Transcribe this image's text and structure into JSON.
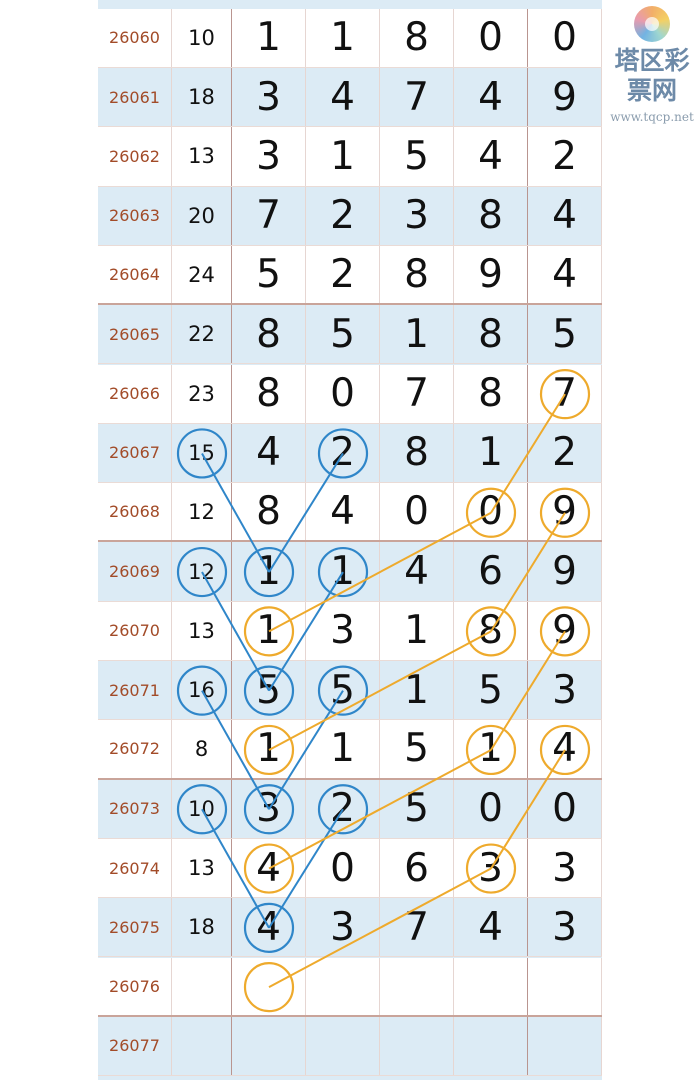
{
  "watermark": {
    "name": "塔区彩票网",
    "url": "www.tqcp.net"
  },
  "colors": {
    "blue_circle": "#2f86c9",
    "orange_circle": "#eeaa2c",
    "row_alt": "#dcebf5",
    "period_text": "#a24b28"
  },
  "rows": [
    {
      "period": "26060",
      "sum": "10",
      "digits": [
        "1",
        "1",
        "8",
        "0",
        "0"
      ]
    },
    {
      "period": "26061",
      "sum": "18",
      "digits": [
        "3",
        "4",
        "7",
        "4",
        "9"
      ]
    },
    {
      "period": "26062",
      "sum": "13",
      "digits": [
        "3",
        "1",
        "5",
        "4",
        "2"
      ]
    },
    {
      "period": "26063",
      "sum": "20",
      "digits": [
        "7",
        "2",
        "3",
        "8",
        "4"
      ]
    },
    {
      "period": "26064",
      "sum": "24",
      "digits": [
        "5",
        "2",
        "8",
        "9",
        "4"
      ]
    },
    {
      "period": "26065",
      "sum": "22",
      "digits": [
        "8",
        "5",
        "1",
        "8",
        "5"
      ]
    },
    {
      "period": "26066",
      "sum": "23",
      "digits": [
        "8",
        "0",
        "7",
        "8",
        "7"
      ]
    },
    {
      "period": "26067",
      "sum": "15",
      "digits": [
        "4",
        "2",
        "8",
        "1",
        "2"
      ]
    },
    {
      "period": "26068",
      "sum": "12",
      "digits": [
        "8",
        "4",
        "0",
        "0",
        "9"
      ]
    },
    {
      "period": "26069",
      "sum": "12",
      "digits": [
        "1",
        "1",
        "4",
        "6",
        "9"
      ]
    },
    {
      "period": "26070",
      "sum": "13",
      "digits": [
        "1",
        "3",
        "1",
        "8",
        "9"
      ]
    },
    {
      "period": "26071",
      "sum": "16",
      "digits": [
        "5",
        "5",
        "1",
        "5",
        "3"
      ]
    },
    {
      "period": "26072",
      "sum": "8",
      "digits": [
        "1",
        "1",
        "5",
        "1",
        "4"
      ]
    },
    {
      "period": "26073",
      "sum": "10",
      "digits": [
        "3",
        "2",
        "5",
        "0",
        "0"
      ]
    },
    {
      "period": "26074",
      "sum": "13",
      "digits": [
        "4",
        "0",
        "6",
        "3",
        "3"
      ]
    },
    {
      "period": "26075",
      "sum": "18",
      "digits": [
        "4",
        "3",
        "7",
        "4",
        "3"
      ]
    },
    {
      "period": "26076",
      "sum": "",
      "digits": [
        "",
        "",
        "",
        "",
        ""
      ]
    },
    {
      "period": "26077",
      "sum": "",
      "digits": [
        "",
        "",
        "",
        "",
        ""
      ]
    }
  ],
  "group_separators_after": [
    "26064",
    "26068",
    "26072",
    "26076"
  ],
  "annotations": {
    "blue_paths": [
      [
        [
          "26067",
          "sum"
        ],
        [
          "26069",
          "d1"
        ],
        [
          "26067",
          "d2"
        ]
      ],
      [
        [
          "26069",
          "sum"
        ],
        [
          "26071",
          "d1"
        ],
        [
          "26069",
          "d2"
        ]
      ],
      [
        [
          "26071",
          "sum"
        ],
        [
          "26073",
          "d1"
        ],
        [
          "26071",
          "d2"
        ]
      ],
      [
        [
          "26073",
          "sum"
        ],
        [
          "26075",
          "d1"
        ],
        [
          "26073",
          "d2"
        ]
      ]
    ],
    "orange_paths": [
      [
        [
          "26066",
          "d5"
        ],
        [
          "26068",
          "d4"
        ],
        [
          "26070",
          "d1"
        ]
      ],
      [
        [
          "26068",
          "d5"
        ],
        [
          "26070",
          "d4"
        ],
        [
          "26072",
          "d1"
        ]
      ],
      [
        [
          "26070",
          "d5"
        ],
        [
          "26072",
          "d4"
        ],
        [
          "26074",
          "d1"
        ]
      ],
      [
        [
          "26072",
          "d5"
        ],
        [
          "26074",
          "d4"
        ],
        [
          "26076",
          "d1"
        ]
      ]
    ]
  }
}
